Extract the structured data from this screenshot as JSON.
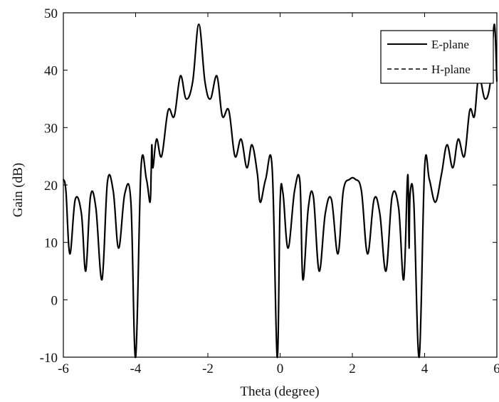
{
  "chart_data": {
    "type": "line",
    "title": "",
    "xlabel": "Theta (degree)",
    "ylabel": "Gain (dB)",
    "xlim": [
      -6,
      6
    ],
    "ylim": [
      -10,
      50
    ],
    "xticks": [
      -6,
      -4,
      -2,
      0,
      2,
      4,
      6
    ],
    "yticks": [
      -10,
      0,
      10,
      20,
      30,
      40,
      50
    ],
    "xtick_labels": [
      "-6",
      "-4",
      "-2",
      "0",
      "2",
      "4",
      "6"
    ],
    "ytick_labels": [
      "-10",
      "0",
      "10",
      "20",
      "30",
      "40",
      "50"
    ],
    "grid": false,
    "legend": {
      "position": "top-right"
    },
    "series": [
      {
        "name": "E-plane",
        "style": "solid",
        "color": "#000000",
        "x": [
          -6.0,
          -5.93,
          -5.82,
          -5.67,
          -5.5,
          -5.38,
          -5.25,
          -5.1,
          -4.93,
          -4.78,
          -4.62,
          -4.47,
          -4.3,
          -4.13,
          -4.0,
          -3.85,
          -3.7,
          -3.6,
          -3.57,
          -3.55,
          -3.52,
          -3.42,
          -3.28,
          -3.1,
          -2.93,
          -2.76,
          -2.6,
          -2.42,
          -2.25,
          -2.08,
          -1.93,
          -1.75,
          -1.6,
          -1.42,
          -1.25,
          -1.08,
          -0.92,
          -0.78,
          -0.63,
          -0.55,
          -0.4,
          -0.22,
          -0.08,
          0.0,
          0.08,
          0.22,
          0.4,
          0.55,
          0.63,
          0.78,
          0.92,
          1.08,
          1.25,
          1.42,
          1.6,
          1.75,
          1.93,
          2.08,
          2.25,
          2.42,
          2.6,
          2.76,
          2.93,
          3.1,
          3.28,
          3.42,
          3.52,
          3.55,
          3.57,
          3.6,
          3.7,
          3.85,
          4.0,
          4.13,
          4.3,
          4.47,
          4.62,
          4.78,
          4.93,
          5.1,
          5.25,
          5.38,
          5.5,
          5.67,
          5.82,
          5.93,
          6.0
        ],
        "values": [
          21,
          19,
          8,
          17.5,
          15,
          5,
          18,
          16,
          3.5,
          20.5,
          19,
          9,
          18.5,
          17,
          -10,
          23,
          21,
          17,
          22,
          27,
          23,
          28,
          25,
          33,
          32,
          39,
          35,
          38,
          48,
          38,
          35,
          39,
          32,
          33,
          25,
          28,
          23,
          27,
          22,
          17,
          21,
          23,
          -10,
          17,
          18.5,
          9,
          19,
          20.5,
          3.5,
          16,
          18,
          5,
          15,
          17.5,
          8,
          19,
          21,
          21,
          19,
          8,
          17.5,
          15,
          5,
          18,
          16,
          3.5,
          20.5,
          19,
          9,
          18.5,
          17,
          -10,
          23,
          21,
          17,
          22,
          27,
          23,
          28,
          25,
          33,
          32,
          39,
          35,
          38,
          48,
          38
        ]
      },
      {
        "name": "H-plane",
        "style": "dashed",
        "color": "#000000"
      }
    ]
  }
}
